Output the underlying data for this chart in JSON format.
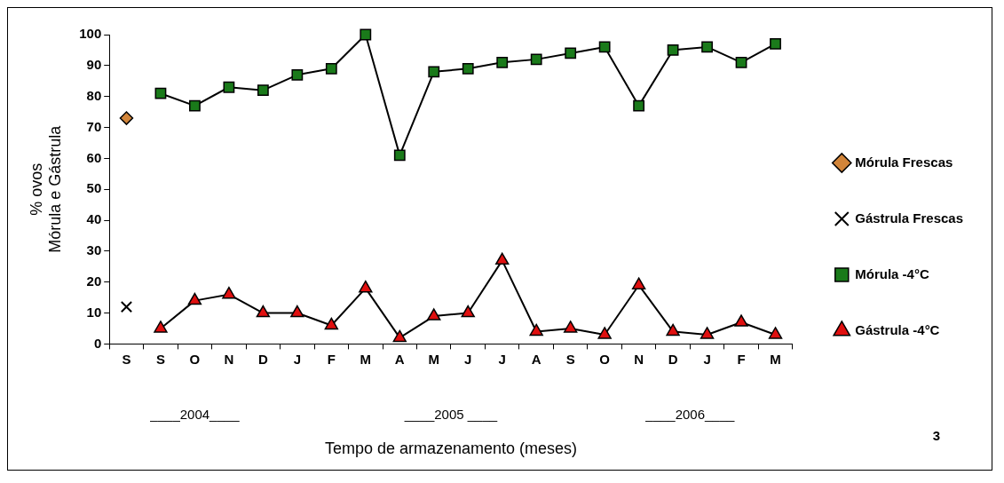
{
  "chart_data": {
    "type": "line",
    "xlabel": "Tempo de armazenamento (meses)",
    "ylabel": "% ovos\nMórula e Gástrula",
    "categories": [
      "S",
      "S",
      "O",
      "N",
      "D",
      "J",
      "F",
      "M",
      "A",
      "M",
      "J",
      "J",
      "A",
      "S",
      "O",
      "N",
      "D",
      "J",
      "F",
      "M"
    ],
    "series": [
      {
        "name": "Mórula Frescas",
        "type": "scatter",
        "marker": "diamond",
        "color": "#d2853a",
        "values": [
          73,
          null,
          null,
          null,
          null,
          null,
          null,
          null,
          null,
          null,
          null,
          null,
          null,
          null,
          null,
          null,
          null,
          null,
          null,
          null
        ]
      },
      {
        "name": "Gástrula Frescas",
        "type": "scatter",
        "marker": "cross",
        "color": "#000000",
        "values": [
          12,
          null,
          null,
          null,
          null,
          null,
          null,
          null,
          null,
          null,
          null,
          null,
          null,
          null,
          null,
          null,
          null,
          null,
          null,
          null
        ]
      },
      {
        "name": "Mórula -4°C",
        "marker": "square",
        "color": "#1a7a1a",
        "values": [
          null,
          81,
          77,
          83,
          82,
          87,
          89,
          100,
          61,
          88,
          89,
          91,
          92,
          94,
          96,
          77,
          95,
          96,
          91,
          97
        ]
      },
      {
        "name": "Gástrula -4°C",
        "marker": "triangle",
        "color": "#e01010",
        "values": [
          null,
          5,
          14,
          16,
          10,
          10,
          6,
          18,
          2,
          9,
          10,
          27,
          4,
          5,
          3,
          19,
          4,
          3,
          7,
          3
        ]
      }
    ],
    "ylim": [
      0,
      100
    ],
    "yticks": [
      0,
      10,
      20,
      30,
      40,
      50,
      60,
      70,
      80,
      90,
      100
    ],
    "grid": false,
    "legend": "right",
    "annotations": [
      "____2004____",
      "____2005 ____",
      "____2006____",
      "3"
    ]
  }
}
